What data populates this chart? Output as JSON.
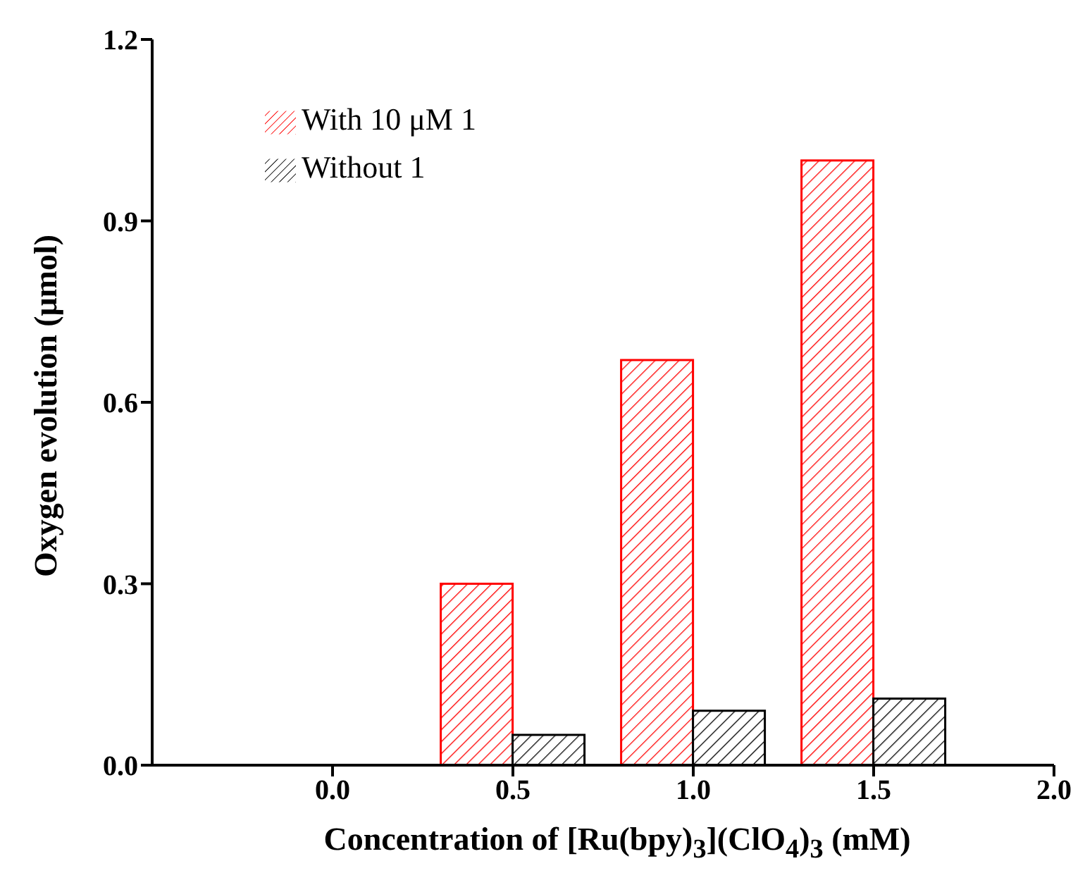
{
  "chart_data": {
    "type": "bar",
    "xlabel": "Concentration of [Ru(bpy)$_{3}$](ClO$_{4}$)$_{3}$ (mM)",
    "ylabel": "Oxygen evolution (μmol)",
    "x": [
      0.5,
      1.0,
      1.5
    ],
    "series": [
      {
        "name": "With 10 μM 1",
        "color": "#ff0000",
        "values": [
          0.3,
          0.67,
          1.0
        ]
      },
      {
        "name": "Without 1",
        "color": "#000000",
        "values": [
          0.05,
          0.09,
          0.11
        ]
      }
    ],
    "xlim": [
      -0.5,
      2.0
    ],
    "xticks": [
      {
        "value": 0,
        "label": "0.0"
      },
      {
        "value": 0.5,
        "label": "0.5"
      },
      {
        "value": 1,
        "label": "1.0"
      },
      {
        "value": 1.5,
        "label": "1.5"
      },
      {
        "value": 2,
        "label": "2.0"
      }
    ],
    "ylim": [
      0,
      1.2
    ],
    "yticks": [
      {
        "value": 0,
        "label": "0.0"
      },
      {
        "value": 0.3,
        "label": "0.3"
      },
      {
        "value": 0.6,
        "label": "0.6"
      },
      {
        "value": 0.9,
        "label": "0.9"
      },
      {
        "value": 1.2,
        "label": "1.2"
      }
    ],
    "grid": false,
    "legend": "top left"
  }
}
